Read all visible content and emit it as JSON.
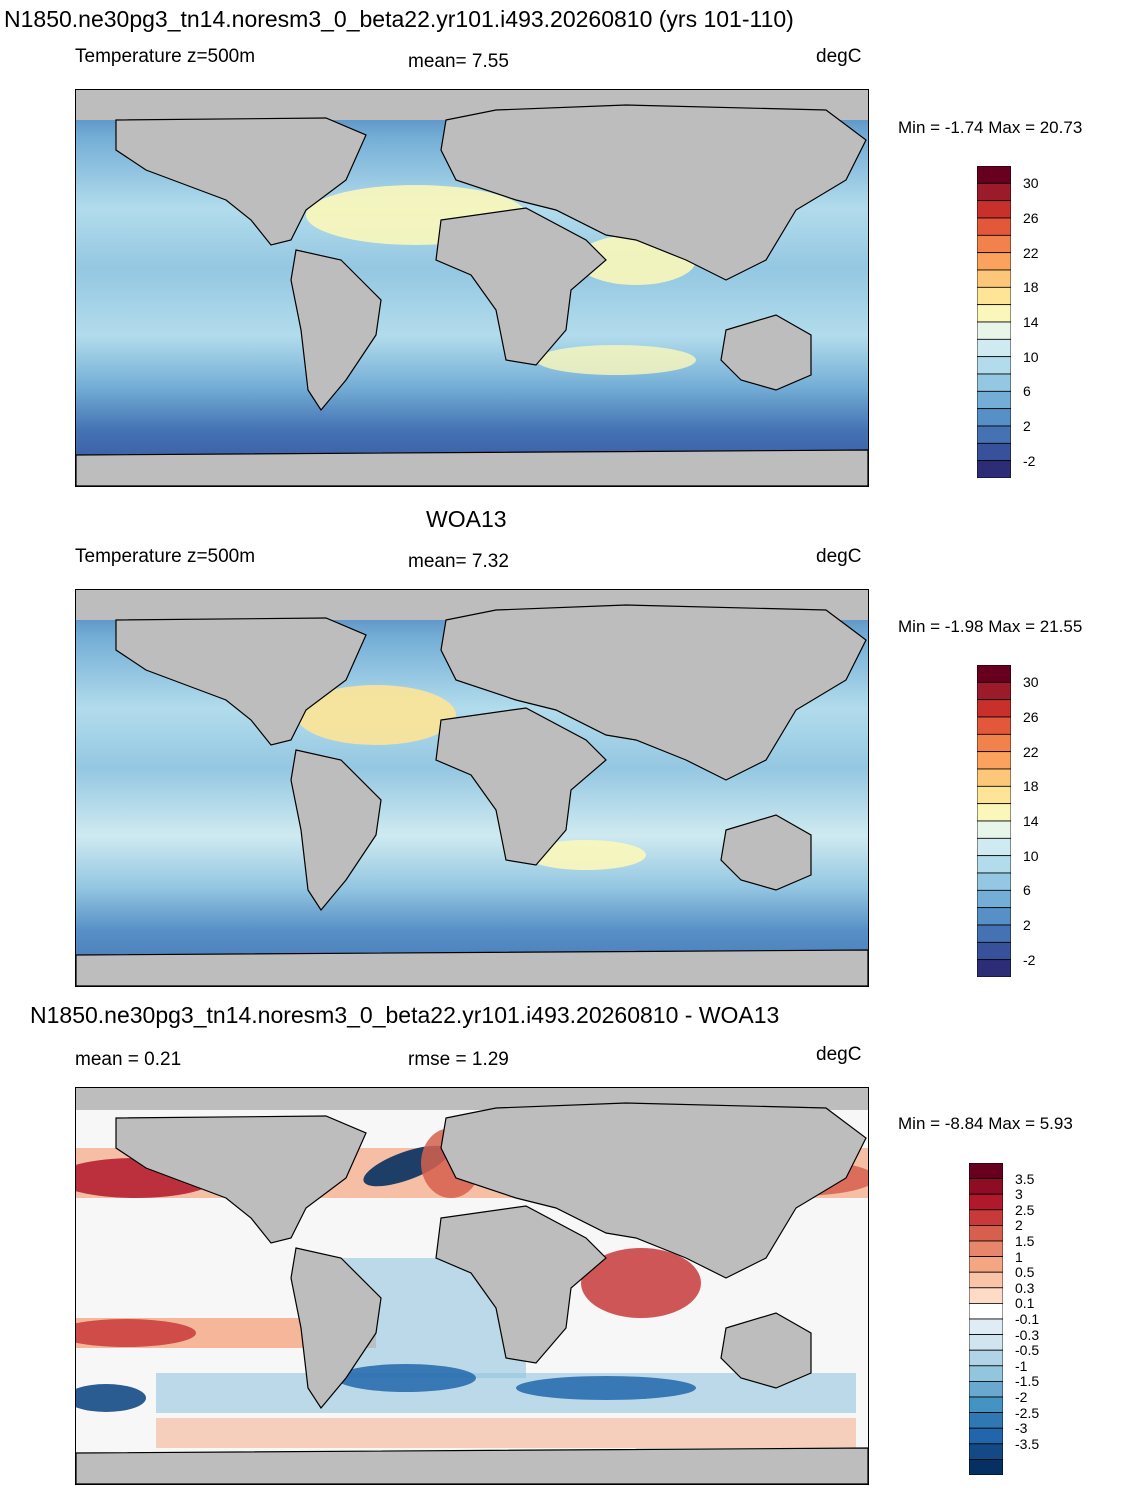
{
  "panels": [
    {
      "id": "model",
      "header_title": "N1850.ne30pg3_tn14.noresm3_0_beta22.yr101.i493.20260810 (yrs 101-110)",
      "variable_label": "Temperature z=500m",
      "stat_text": "mean=   7.55",
      "stat2_text": "",
      "units": "degC",
      "minmax_text": "Min =  -1.74 Max =  20.73",
      "colorbar_labels": [
        "30",
        "26",
        "22",
        "18",
        "14",
        "10",
        "6",
        "2",
        "-2"
      ],
      "colorbar_colors": [
        "#67001f",
        "#9b1b2a",
        "#c8302c",
        "#e3573a",
        "#f2824b",
        "#fba35e",
        "#fdc779",
        "#fde496",
        "#fbf7ba",
        "#e8f5e9",
        "#cfeaf0",
        "#b2dcec",
        "#94c7e2",
        "#74aed6",
        "#5790c6",
        "#4472b3",
        "#37519b",
        "#2d2d77"
      ]
    },
    {
      "id": "obs",
      "header_title": "WOA13",
      "variable_label": "Temperature z=500m",
      "stat_text": "mean=   7.32",
      "stat2_text": "",
      "units": "degC",
      "minmax_text": "Min =  -1.98 Max =  21.55",
      "colorbar_labels": [
        "30",
        "26",
        "22",
        "18",
        "14",
        "10",
        "6",
        "2",
        "-2"
      ],
      "colorbar_colors": [
        "#67001f",
        "#9b1b2a",
        "#c8302c",
        "#e3573a",
        "#f2824b",
        "#fba35e",
        "#fdc779",
        "#fde496",
        "#fbf7ba",
        "#e8f5e9",
        "#cfeaf0",
        "#b2dcec",
        "#94c7e2",
        "#74aed6",
        "#5790c6",
        "#4472b3",
        "#37519b",
        "#2d2d77"
      ]
    },
    {
      "id": "diff",
      "header_title": "N1850.ne30pg3_tn14.noresm3_0_beta22.yr101.i493.20260810 - WOA13",
      "variable_label": "",
      "stat_text": "mean =   0.21",
      "stat2_text": "rmse =   1.29",
      "units": "degC",
      "minmax_text": "Min =  -8.84 Max =    5.93",
      "colorbar_labels": [
        "3.5",
        "3",
        "2.5",
        "2",
        "1.5",
        "1",
        "0.5",
        "0.3",
        "0.1",
        "-0.1",
        "-0.3",
        "-0.5",
        "-1",
        "-1.5",
        "-2",
        "-2.5",
        "-3",
        "-3.5"
      ],
      "colorbar_colors": [
        "#67001f",
        "#8e0d25",
        "#b2182b",
        "#c8393a",
        "#d6604d",
        "#e8866c",
        "#f4a582",
        "#f9c4a8",
        "#fddbc7",
        "#ffffff",
        "#e0ecf5",
        "#d1e5f0",
        "#b1d3e7",
        "#92c5de",
        "#6aa8cf",
        "#4393c3",
        "#2f78b4",
        "#2166ac",
        "#134a86",
        "#053061"
      ]
    }
  ],
  "map_colors": {
    "land": "#bdbdbd",
    "coast": "#000000"
  }
}
